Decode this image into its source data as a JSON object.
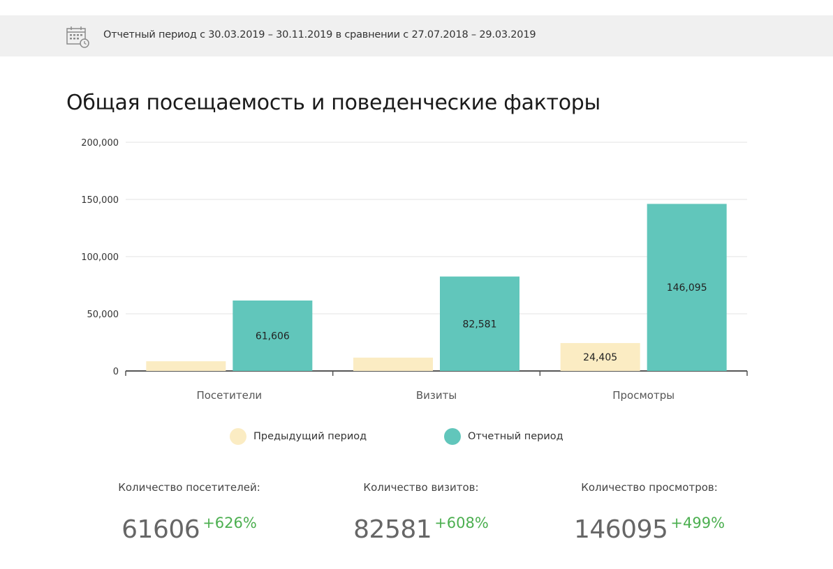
{
  "header": {
    "period_text": "Отчетный период с 30.03.2019 – 30.11.2019 в сравнении с 27.07.2018 – 29.03.2019",
    "icon": "calendar-clock-icon"
  },
  "section": {
    "title": "Общая посещаемость и поведенческие факторы"
  },
  "chart_data": {
    "type": "bar",
    "title": "",
    "xlabel": "",
    "ylabel": "",
    "categories": [
      "Посетители",
      "Визиты",
      "Просмотры"
    ],
    "series": [
      {
        "name": "Предыдущий период",
        "values": [
          8487,
          11665,
          24405
        ],
        "color": "#fbecc3",
        "labels": [
          "",
          "",
          "24,405"
        ]
      },
      {
        "name": "Отчетный период",
        "values": [
          61606,
          82581,
          146095
        ],
        "color": "#61c6bb",
        "labels": [
          "61,606",
          "82,581",
          "146,095"
        ]
      }
    ],
    "ylim": [
      0,
      200000
    ],
    "yticks": [
      0,
      50000,
      100000,
      150000,
      200000
    ],
    "ytick_labels": [
      "0",
      "50,000",
      "100,000",
      "150,000",
      "200,000"
    ],
    "grid": true,
    "legend_position": "bottom"
  },
  "legend": {
    "items": [
      {
        "label": "Предыдущий период",
        "color": "#fbecc3"
      },
      {
        "label": "Отчетный период",
        "color": "#61c6bb"
      }
    ]
  },
  "stats": [
    {
      "label": "Количество посетителей:",
      "value": "61606",
      "change": "+626%"
    },
    {
      "label": "Количество визитов:",
      "value": "82581",
      "change": "+608%"
    },
    {
      "label": "Количество просмотров:",
      "value": "146095",
      "change": "+499%"
    }
  ]
}
